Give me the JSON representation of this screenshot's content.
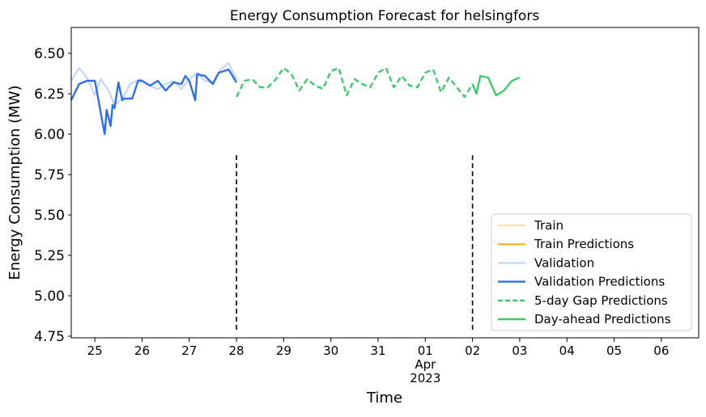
{
  "chart_data": {
    "type": "line",
    "title": "Energy Consumption Forecast for helsingfors",
    "xlabel": "Time",
    "ylabel": "Energy Consumption (MW)",
    "xlim": [
      "2023-03-24 12:00",
      "2023-04-06 19:00"
    ],
    "ylim": [
      4.74,
      6.66
    ],
    "grid": false,
    "legend_position": "bottom-right",
    "x_ticks": [
      {
        "date": "2023-03-25",
        "label": "25"
      },
      {
        "date": "2023-03-26",
        "label": "26"
      },
      {
        "date": "2023-03-27",
        "label": "27"
      },
      {
        "date": "2023-03-28",
        "label": "28"
      },
      {
        "date": "2023-03-29",
        "label": "29"
      },
      {
        "date": "2023-03-30",
        "label": "30"
      },
      {
        "date": "2023-03-31",
        "label": "31"
      },
      {
        "date": "2023-04-01",
        "label": "01",
        "sub": [
          "Apr",
          "2023"
        ]
      },
      {
        "date": "2023-04-02",
        "label": "02"
      },
      {
        "date": "2023-04-03",
        "label": "03"
      },
      {
        "date": "2023-04-04",
        "label": "04"
      },
      {
        "date": "2023-04-05",
        "label": "05"
      },
      {
        "date": "2023-04-06",
        "label": "06"
      }
    ],
    "y_ticks": [
      4.75,
      5.0,
      5.25,
      5.5,
      5.75,
      6.0,
      6.25,
      6.5
    ],
    "y_tick_labels": [
      "4.75",
      "5.00",
      "5.25",
      "5.50",
      "5.75",
      "6.00",
      "6.25",
      "6.50"
    ],
    "vlines": [
      {
        "x": "2023-03-28",
        "y_range": [
          4.79,
          5.88
        ],
        "style": "dashed",
        "color": "#000000"
      },
      {
        "x": "2023-04-02",
        "y_range": [
          4.79,
          5.88
        ],
        "style": "dashed",
        "color": "#000000"
      }
    ],
    "series": [
      {
        "name": "Train",
        "color": "#fde0a6",
        "style": "solid",
        "x": [],
        "y": []
      },
      {
        "name": "Train Predictions",
        "color": "#f5b82e",
        "style": "solid",
        "x": [],
        "y": []
      },
      {
        "name": "Validation",
        "color": "#c6d8f7",
        "style": "solid",
        "x": [
          "2023-03-24 12:00",
          "2023-03-24 16:00",
          "2023-03-24 20:00",
          "2023-03-25 00:00",
          "2023-03-25 03:00",
          "2023-03-25 07:00",
          "2023-03-25 10:00",
          "2023-03-25 14:00",
          "2023-03-25 18:00",
          "2023-03-25 23:00",
          "2023-03-26 04:00",
          "2023-03-26 08:00",
          "2023-03-26 12:00",
          "2023-03-26 16:00",
          "2023-03-26 20:00",
          "2023-03-27 00:00",
          "2023-03-27 04:00",
          "2023-03-27 08:00",
          "2023-03-27 12:00",
          "2023-03-27 16:00",
          "2023-03-27 20:00",
          "2023-03-28 00:00"
        ],
        "y": [
          6.33,
          6.41,
          6.35,
          6.24,
          6.34,
          6.27,
          6.18,
          6.22,
          6.31,
          6.34,
          6.3,
          6.28,
          6.31,
          6.33,
          6.28,
          6.34,
          6.38,
          6.33,
          6.32,
          6.4,
          6.44,
          6.34
        ]
      },
      {
        "name": "Validation Predictions",
        "color": "#2e6ff0",
        "style": "solid",
        "x": [
          "2023-03-24 12:00",
          "2023-03-24 16:00",
          "2023-03-24 20:00",
          "2023-03-25 00:00",
          "2023-03-25 05:00",
          "2023-03-25 06:00",
          "2023-03-25 08:00",
          "2023-03-25 09:00",
          "2023-03-25 10:00",
          "2023-03-25 12:00",
          "2023-03-25 13:00",
          "2023-03-25 14:00",
          "2023-03-25 15:00",
          "2023-03-25 19:00",
          "2023-03-25 22:00",
          "2023-03-26 00:00",
          "2023-03-26 04:00",
          "2023-03-26 08:00",
          "2023-03-26 12:00",
          "2023-03-26 16:00",
          "2023-03-26 20:00",
          "2023-03-26 22:00",
          "2023-03-27 00:00",
          "2023-03-27 03:00",
          "2023-03-27 04:00",
          "2023-03-27 08:00",
          "2023-03-27 12:00",
          "2023-03-27 15:00",
          "2023-03-27 20:00",
          "2023-03-28 00:00"
        ],
        "y": [
          6.21,
          6.31,
          6.33,
          6.33,
          6.0,
          6.15,
          6.05,
          6.18,
          6.16,
          6.32,
          6.26,
          6.21,
          6.22,
          6.22,
          6.33,
          6.33,
          6.3,
          6.33,
          6.27,
          6.32,
          6.31,
          6.36,
          6.33,
          6.21,
          6.37,
          6.36,
          6.31,
          6.38,
          6.4,
          6.32
        ]
      },
      {
        "name": "5-day Gap Predictions",
        "color": "#3dcb6a",
        "style": "dashed",
        "x": [
          "2023-03-28 00:00",
          "2023-03-28 04:00",
          "2023-03-28 08:00",
          "2023-03-28 12:00",
          "2023-03-28 16:00",
          "2023-03-28 20:00",
          "2023-03-29 00:00",
          "2023-03-29 04:00",
          "2023-03-29 08:00",
          "2023-03-29 12:00",
          "2023-03-29 16:00",
          "2023-03-29 20:00",
          "2023-03-30 00:00",
          "2023-03-30 04:00",
          "2023-03-30 08:00",
          "2023-03-30 12:00",
          "2023-03-30 16:00",
          "2023-03-30 20:00",
          "2023-03-31 00:00",
          "2023-03-31 04:00",
          "2023-03-31 08:00",
          "2023-03-31 12:00",
          "2023-03-31 16:00",
          "2023-03-31 20:00",
          "2023-04-01 00:00",
          "2023-04-01 04:00",
          "2023-04-01 08:00",
          "2023-04-01 12:00",
          "2023-04-01 16:00",
          "2023-04-01 20:00",
          "2023-04-02 00:00"
        ],
        "y": [
          6.23,
          6.33,
          6.34,
          6.29,
          6.29,
          6.34,
          6.41,
          6.37,
          6.27,
          6.34,
          6.3,
          6.28,
          6.39,
          6.41,
          6.24,
          6.34,
          6.31,
          6.29,
          6.38,
          6.41,
          6.29,
          6.36,
          6.3,
          6.29,
          6.38,
          6.4,
          6.26,
          6.35,
          6.29,
          6.23,
          6.31
        ]
      },
      {
        "name": "Day-ahead Predictions",
        "color": "#3dcb6a",
        "style": "solid",
        "x": [
          "2023-04-02 00:00",
          "2023-04-02 02:00",
          "2023-04-02 04:00",
          "2023-04-02 08:00",
          "2023-04-02 12:00",
          "2023-04-02 16:00",
          "2023-04-02 20:00",
          "2023-04-03 00:00"
        ],
        "y": [
          6.31,
          6.25,
          6.36,
          6.35,
          6.24,
          6.27,
          6.33,
          6.35
        ]
      }
    ]
  }
}
